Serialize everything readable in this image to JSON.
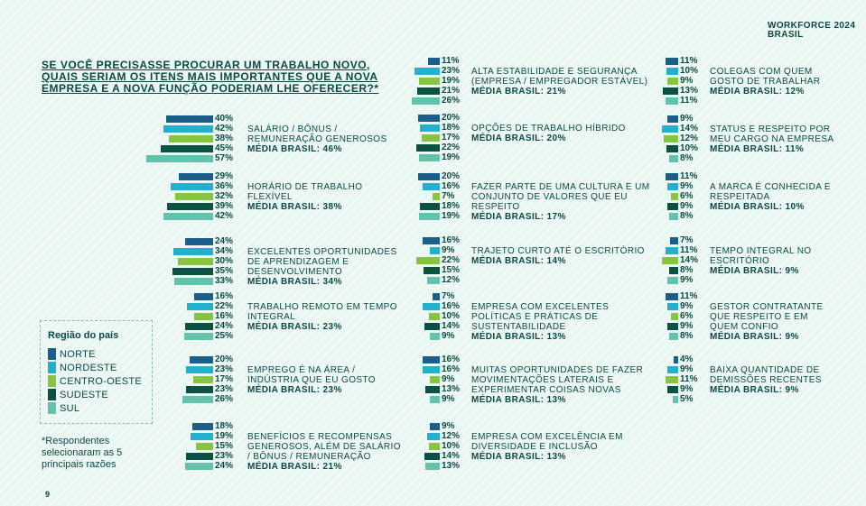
{
  "brand": {
    "line1": "WORKFORCE 2024",
    "line2": "BRASIL"
  },
  "question": "SE VOCÊ PRECISASSE PROCURAR UM TRABALHO NOVO, QUAIS SERIAM OS ITENS MAIS IMPORTANTES QUE A NOVA EMPRESA E A NOVA FUNÇÃO PODERIAM LHE OFERECER?*",
  "legend": {
    "title": "Região do país"
  },
  "footnote": "*Respondentes selecionaram as 5 principais razões",
  "page_number": "9",
  "colors": {
    "NORTE": "#1c5e8a",
    "NORDESTE": "#22b0cc",
    "CENTRO-OESTE": "#86c441",
    "SUDESTE": "#0c5244",
    "SUL": "#62c2ac"
  },
  "chart_data": {
    "type": "bar",
    "orientation": "horizontal",
    "unit": "%",
    "series_names": [
      "NORTE",
      "NORDESTE",
      "CENTRO-OESTE",
      "SUDESTE",
      "SUL"
    ],
    "items": [
      {
        "label": "SALÁRIO / BÔNUS / REMUNERAÇÃO GENEROSOS",
        "avg_text": "MÉDIA BRASIL: 46%",
        "values": [
          40,
          42,
          38,
          45,
          57
        ]
      },
      {
        "label": "HORÁRIO DE TRABALHO FLEXÍVEL",
        "avg_text": "MÉDIA BRASIL: 38%",
        "values": [
          29,
          36,
          32,
          39,
          42
        ]
      },
      {
        "label": "EXCELENTES OPORTUNIDADES DE APRENDIZAGEM E DESENVOLVIMENTO",
        "avg_text": "MÉDIA BRASIL: 34%",
        "values": [
          24,
          34,
          30,
          35,
          33
        ]
      },
      {
        "label": "TRABALHO REMOTO EM TEMPO INTEGRAL",
        "avg_text": "MÉDIA BRASIL: 23%",
        "values": [
          16,
          22,
          16,
          24,
          25
        ]
      },
      {
        "label": "EMPREGO É NA ÁREA / INDÚSTRIA QUE EU GOSTO",
        "avg_text": "MÉDIA BRASIL: 23%",
        "values": [
          20,
          23,
          17,
          23,
          26
        ]
      },
      {
        "label": "BENEFÍCIOS E RECOMPENSAS GENEROSOS, ALÉM DE SALÁRIO / BÔNUS / REMUNERAÇÃO",
        "avg_text": "MÉDIA BRASIL: 21%",
        "values": [
          18,
          19,
          15,
          23,
          24
        ]
      },
      {
        "label": "ALTA ESTABILIDADE E SEGURANÇA (EMPRESA / EMPREGADOR ESTÁVEL)",
        "avg_text": "MÉDIA BRASIL: 21%",
        "values": [
          11,
          23,
          19,
          21,
          26
        ]
      },
      {
        "label": "OPÇÕES DE TRABALHO HÍBRIDO",
        "avg_text": "MÉDIA BRASIL: 20%",
        "values": [
          20,
          18,
          17,
          22,
          19
        ]
      },
      {
        "label": "FAZER PARTE DE UMA CULTURA E UM CONJUNTO DE VALORES QUE EU RESPEITO",
        "avg_text": "MÉDIA BRASIL: 17%",
        "values": [
          20,
          16,
          7,
          18,
          19
        ]
      },
      {
        "label": "TRAJETO CURTO ATÉ O ESCRITÓRIO",
        "avg_text": "MÉDIA BRASIL: 14%",
        "values": [
          16,
          9,
          22,
          15,
          12
        ]
      },
      {
        "label": "EMPRESA COM EXCELENTES POLÍTICAS E PRÁTICAS DE SUSTENTABILIDADE",
        "avg_text": "MÉDIA BRASIL: 13%",
        "values": [
          7,
          16,
          10,
          14,
          9
        ]
      },
      {
        "label": "MUITAS OPORTUNIDADES DE FAZER MOVIMENTAÇÕES LATERAIS E EXPERIMENTAR COISAS NOVAS",
        "avg_text": "MÉDIA BRASIL: 13%",
        "values": [
          16,
          16,
          9,
          13,
          9
        ]
      },
      {
        "label": "EMPRESA COM EXCELÊNCIA EM DIVERSIDADE E INCLUSÃO",
        "avg_text": "MÉDIA BRASIL: 13%",
        "values": [
          9,
          12,
          10,
          14,
          13
        ]
      },
      {
        "label": "COLEGAS COM QUEM GOSTO DE TRABALHAR",
        "avg_text": "MÉDIA BRASIL: 12%",
        "values": [
          11,
          10,
          9,
          13,
          11
        ]
      },
      {
        "label": "STATUS E RESPEITO POR MEU CARGO NA EMPRESA",
        "avg_text": "MÉDIA BRASIL: 11%",
        "values": [
          9,
          14,
          12,
          10,
          8
        ]
      },
      {
        "label": "A MARCA É CONHECIDA E RESPEITADA",
        "avg_text": "MÉDIA BRASIL: 10%",
        "values": [
          11,
          9,
          6,
          9,
          8
        ]
      },
      {
        "label": "TEMPO INTEGRAL NO ESCRITÓRIO",
        "avg_text": "MÉDIA BRASIL: 9%",
        "values": [
          7,
          11,
          14,
          8,
          9
        ]
      },
      {
        "label": "GESTOR CONTRATANTE QUE RESPEITO E EM QUEM CONFIO",
        "avg_text": "MÉDIA BRASIL: 9%",
        "values": [
          11,
          9,
          6,
          9,
          8
        ]
      },
      {
        "label": "BAIXA QUANTIDADE DE DEMISSÕES RECENTES",
        "avg_text": "MÉDIA BRASIL: 9%",
        "values": [
          4,
          9,
          11,
          9,
          5
        ]
      }
    ]
  }
}
